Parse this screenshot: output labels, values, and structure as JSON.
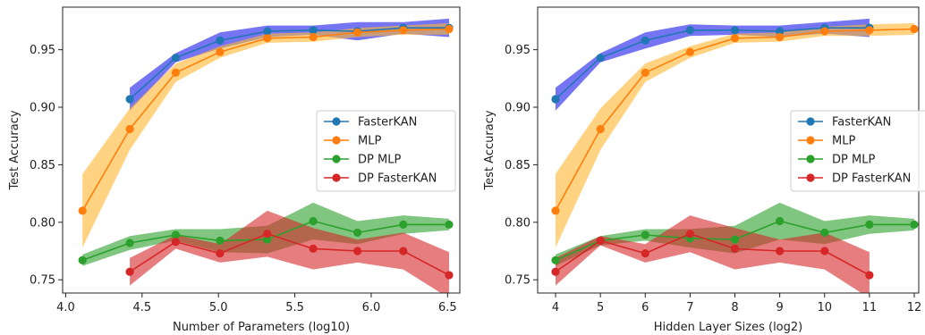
{
  "chart_data": [
    {
      "type": "line",
      "xlabel": "Number of Parameters (log10)",
      "ylabel": "Test Accuracy",
      "xlim": [
        3.98,
        6.58
      ],
      "ylim": [
        0.7385,
        0.987
      ],
      "xticks": [
        4.0,
        4.5,
        5.0,
        5.5,
        6.0,
        6.5
      ],
      "xtick_labels": [
        "4.0",
        "4.5",
        "5.0",
        "5.5",
        "6.0",
        "6.5"
      ],
      "yticks": [
        0.75,
        0.8,
        0.85,
        0.9,
        0.95
      ],
      "ytick_labels": [
        "0.75",
        "0.80",
        "0.85",
        "0.90",
        "0.95"
      ],
      "legend_position": "center-right",
      "series": [
        {
          "name": "FasterKAN",
          "color": "#1f77b4",
          "x": [
            4.42,
            4.72,
            5.01,
            5.32,
            5.62,
            5.91,
            6.21,
            6.51
          ],
          "y": [
            0.907,
            0.943,
            0.958,
            0.966,
            0.967,
            0.966,
            0.969,
            0.969
          ],
          "band": [
            0.01,
            0.004,
            0.007,
            0.005,
            0.004,
            0.008,
            0.005,
            0.008
          ]
        },
        {
          "name": "MLP",
          "color": "#ff7f0e",
          "x": [
            4.11,
            4.42,
            4.72,
            5.01,
            5.32,
            5.62,
            5.91,
            6.21,
            6.51
          ],
          "y": [
            0.81,
            0.881,
            0.93,
            0.948,
            0.96,
            0.961,
            0.965,
            0.967,
            0.968
          ],
          "band": [
            0.032,
            0.018,
            0.008,
            0.005,
            0.004,
            0.004,
            0.004,
            0.004,
            0.005
          ]
        },
        {
          "name": "DP MLP",
          "color": "#2ca02c",
          "x": [
            4.11,
            4.42,
            4.72,
            5.01,
            5.32,
            5.62,
            5.91,
            6.21,
            6.51
          ],
          "y": [
            0.767,
            0.782,
            0.789,
            0.784,
            0.785,
            0.801,
            0.791,
            0.798,
            0.798
          ],
          "band": [
            0.005,
            0.006,
            0.005,
            0.01,
            0.012,
            0.016,
            0.01,
            0.008,
            0.005
          ]
        },
        {
          "name": "DP FasterKAN",
          "color": "#d62728",
          "x": [
            4.42,
            4.72,
            5.01,
            5.32,
            5.62,
            5.91,
            6.21,
            6.51
          ],
          "y": [
            0.757,
            0.783,
            0.773,
            0.79,
            0.777,
            0.775,
            0.775,
            0.754
          ],
          "band": [
            0.012,
            0.006,
            0.008,
            0.02,
            0.018,
            0.01,
            0.016,
            0.02
          ]
        }
      ]
    },
    {
      "type": "line",
      "xlabel": "Hidden Layer Sizes (log2)",
      "ylabel": "Test Accuracy",
      "xlim": [
        3.6,
        12.1
      ],
      "ylim": [
        0.7385,
        0.987
      ],
      "xticks": [
        4,
        5,
        6,
        7,
        8,
        9,
        10,
        11,
        12
      ],
      "xtick_labels": [
        "4",
        "5",
        "6",
        "7",
        "8",
        "9",
        "10",
        "11",
        "12"
      ],
      "yticks": [
        0.75,
        0.8,
        0.85,
        0.9,
        0.95
      ],
      "ytick_labels": [
        "0.75",
        "0.80",
        "0.85",
        "0.90",
        "0.95"
      ],
      "legend_position": "center-right",
      "series": [
        {
          "name": "FasterKAN",
          "color": "#1f77b4",
          "x": [
            4,
            5,
            6,
            7,
            8,
            9,
            10,
            11
          ],
          "y": [
            0.907,
            0.943,
            0.958,
            0.967,
            0.967,
            0.966,
            0.969,
            0.969
          ],
          "band": [
            0.01,
            0.004,
            0.007,
            0.005,
            0.004,
            0.005,
            0.005,
            0.008
          ]
        },
        {
          "name": "MLP",
          "color": "#ff7f0e",
          "x": [
            4,
            5,
            6,
            7,
            8,
            9,
            10,
            11,
            12
          ],
          "y": [
            0.81,
            0.881,
            0.93,
            0.948,
            0.96,
            0.961,
            0.966,
            0.967,
            0.968
          ],
          "band": [
            0.032,
            0.018,
            0.008,
            0.005,
            0.004,
            0.004,
            0.004,
            0.005,
            0.005
          ]
        },
        {
          "name": "DP MLP",
          "color": "#2ca02c",
          "x": [
            4,
            5,
            6,
            7,
            8,
            9,
            10,
            11,
            12
          ],
          "y": [
            0.767,
            0.784,
            0.789,
            0.786,
            0.785,
            0.801,
            0.791,
            0.798,
            0.798
          ],
          "band": [
            0.005,
            0.004,
            0.005,
            0.008,
            0.012,
            0.016,
            0.01,
            0.008,
            0.005
          ]
        },
        {
          "name": "DP FasterKAN",
          "color": "#d62728",
          "x": [
            4,
            5,
            6,
            7,
            8,
            9,
            10,
            11
          ],
          "y": [
            0.757,
            0.784,
            0.773,
            0.79,
            0.777,
            0.775,
            0.775,
            0.754
          ],
          "band": [
            0.012,
            0.004,
            0.008,
            0.016,
            0.018,
            0.01,
            0.016,
            0.02
          ]
        }
      ]
    }
  ]
}
